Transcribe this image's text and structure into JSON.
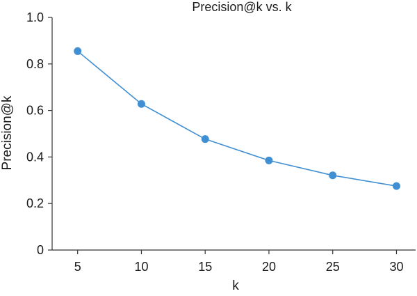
{
  "chart_data": {
    "type": "line",
    "title": "Precision@k vs. k",
    "xlabel": "k",
    "ylabel": "Precision@k",
    "x": [
      5,
      10,
      15,
      20,
      25,
      30
    ],
    "series": [
      {
        "values": [
          0.855,
          0.628,
          0.477,
          0.385,
          0.321,
          0.275
        ],
        "color": "#3f8fd2"
      }
    ],
    "xlim": [
      3,
      31.5
    ],
    "ylim": [
      0,
      1.0
    ],
    "xticks": [
      "5",
      "10",
      "15",
      "20",
      "25",
      "30"
    ],
    "yticks": [
      "0",
      "0.2",
      "0.4",
      "0.6",
      "0.8",
      "1.0"
    ],
    "grid": false,
    "legend": "none"
  }
}
